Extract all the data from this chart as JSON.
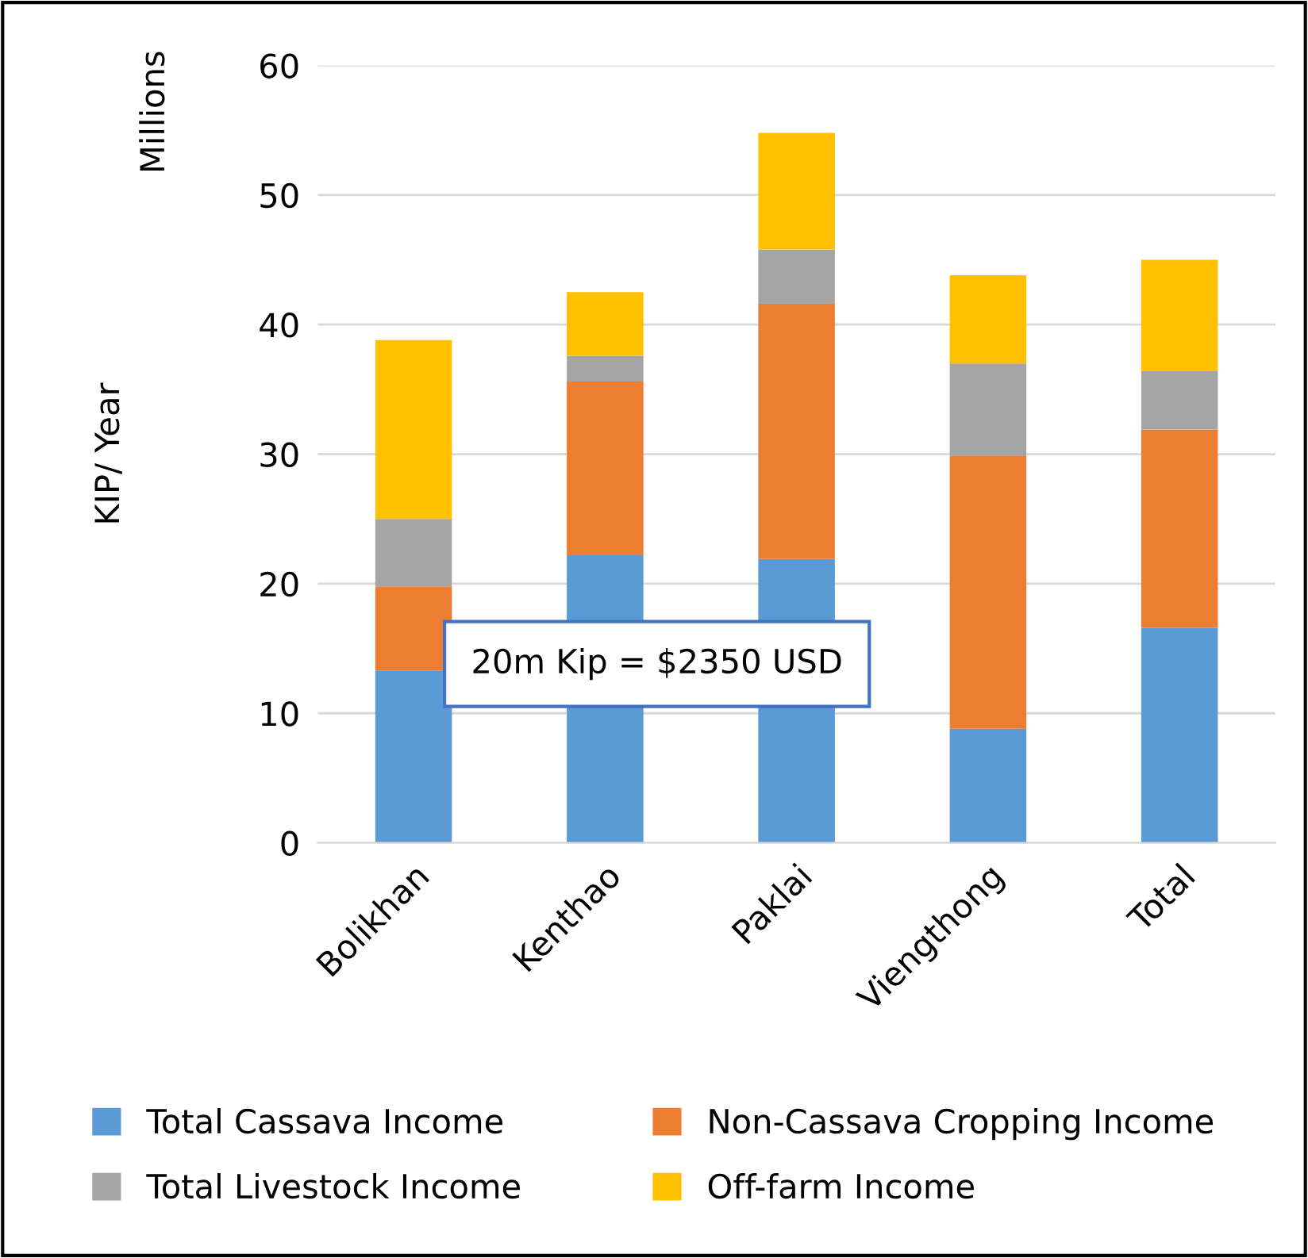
{
  "chart_data": {
    "type": "bar",
    "stacked": true,
    "ylabel": "KIP/ Year",
    "categories": [
      "Bolikhan",
      "Kenthao",
      "Paklai",
      "Viengthong",
      "Total"
    ],
    "series": [
      {
        "name": "Total Cassava Income",
        "color": "#5b9bd5",
        "values": [
          13.3,
          22.2,
          21.9,
          8.8,
          16.6
        ]
      },
      {
        "name": "Non-Cassava Cropping Income",
        "color": "#ed7d31",
        "values": [
          6.5,
          13.4,
          19.7,
          21.1,
          15.3
        ]
      },
      {
        "name": "Total Livestock Income",
        "color": "#a5a5a5",
        "values": [
          5.2,
          2.0,
          4.2,
          7.1,
          4.5
        ]
      },
      {
        "name": "Off-farm Income",
        "color": "#ffc000",
        "values": [
          13.8,
          4.9,
          9.0,
          6.8,
          8.6
        ]
      }
    ],
    "ylim": [
      0,
      60
    ],
    "yticks": [
      0,
      10,
      20,
      30,
      40,
      50,
      60
    ],
    "grid": "y",
    "legend": "bottom",
    "annotations": [
      "Millions",
      "20m Kip = $2350 USD"
    ]
  }
}
